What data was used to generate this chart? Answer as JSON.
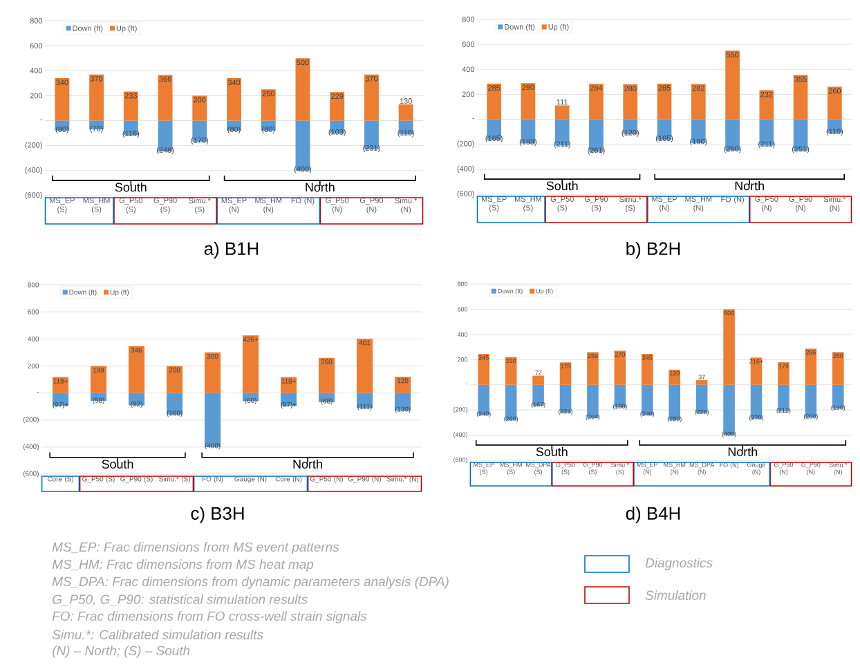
{
  "chart_data": [
    {
      "type": "bar",
      "title": "a) B1H",
      "categories": [
        "MS_EP (S)",
        "MS_HM (S)",
        "G_P50 (S)",
        "G_P90 (S)",
        "Simu.* (S)",
        "MS_EP (N)",
        "MS_HM (N)",
        "FO (N)",
        "G_P50 (N)",
        "G_P90 (N)",
        "Simu.* (N)"
      ],
      "series": [
        {
          "name": "Down (ft)",
          "color": "#5b9bd5",
          "values": [
            -80,
            -70,
            -116,
            -248,
            -170,
            -80,
            -80,
            -400,
            -103,
            -231,
            -110
          ],
          "value_labels": [
            "(80)",
            "(70)",
            "(116)",
            "(248)",
            "(170)",
            "(80)",
            "(80)",
            "(400)",
            "(103)",
            "(231)",
            "(110)"
          ]
        },
        {
          "name": "Up (ft)",
          "color": "#ed7d31",
          "values": [
            340,
            370,
            233,
            366,
            200,
            340,
            250,
            500,
            229,
            370,
            130
          ],
          "value_labels": [
            "340",
            "370",
            "233",
            "366",
            "200",
            "340",
            "250",
            "500",
            "229",
            "370",
            "130"
          ]
        }
      ],
      "ylim": [
        -600,
        800
      ],
      "yticks": [
        {
          "value": -600,
          "label": "(600)"
        },
        {
          "value": -400,
          "label": "(400)"
        },
        {
          "value": -200,
          "label": "(200)"
        },
        {
          "value": 0,
          "label": "-"
        },
        200,
        400,
        600,
        800
      ],
      "grid": "y",
      "legend": "top left",
      "stacked": true,
      "annotations": [
        "South",
        "North"
      ]
    },
    {
      "type": "bar",
      "title": "b) B2H",
      "categories": [
        "MS_EP (S)",
        "MS_HM (S)",
        "G_P50 (S)",
        "G_P90 (S)",
        "Simu.* (S)",
        "MS_EP (N)",
        "MS_HM (N)",
        "FO (N)",
        "G_P50 (N)",
        "G_P90 (N)",
        "Simu.* (N)"
      ],
      "series": [
        {
          "name": "Down (ft)",
          "color": "#5b9bd5",
          "values": [
            -165,
            -193,
            -211,
            -261,
            -120,
            -165,
            -190,
            -250,
            -211,
            -251,
            -110
          ],
          "value_labels": [
            "(165)",
            "(193)",
            "(211)",
            "(261)",
            "(120)",
            "(165)",
            "(190)",
            "(250)",
            "(211)",
            "(251)",
            "(110)"
          ]
        },
        {
          "name": "Up (ft)",
          "color": "#ed7d31",
          "values": [
            285,
            290,
            111,
            284,
            280,
            285,
            282,
            550,
            232,
            355,
            260
          ],
          "value_labels": [
            "285",
            "290",
            "111",
            "284",
            "280",
            "285",
            "282",
            "550",
            "232",
            "355",
            "260"
          ]
        }
      ],
      "ylim": [
        -600,
        800
      ],
      "yticks": [
        {
          "value": -600,
          "label": "(600)"
        },
        {
          "value": -400,
          "label": "(400)"
        },
        {
          "value": -200,
          "label": "(200)"
        },
        {
          "value": 0,
          "label": "-"
        },
        200,
        400,
        600,
        800
      ],
      "grid": "y",
      "legend": "top left",
      "stacked": true,
      "annotations": [
        "South",
        "North"
      ]
    },
    {
      "type": "bar",
      "title": "c) B3H",
      "categories": [
        "Core (S)",
        "G_P50 (S)",
        "G_P90 (S)",
        "Simu.* (S)",
        "FO (N)",
        "Gauge (N)",
        "Core (N)",
        "G_P50 (N)",
        "G_P90 (N)",
        "Simu.* (N)"
      ],
      "series": [
        {
          "name": "Down (ft)",
          "color": "#5b9bd5",
          "values": [
            -97,
            -58,
            -92,
            -160,
            -400,
            -60,
            -97,
            -68,
            -111,
            -130
          ],
          "value_labels": [
            "(97)+",
            "(58)",
            "(92)",
            "(160)",
            "(400)",
            "(60)",
            "(97)+",
            "(68)",
            "(111)",
            "(130)"
          ]
        },
        {
          "name": "Up (ft)",
          "color": "#ed7d31",
          "values": [
            118,
            199,
            346,
            200,
            300,
            426,
            118,
            260,
            401,
            120
          ],
          "value_labels": [
            "118+",
            "199",
            "346",
            "200",
            "300",
            "426+",
            "118+",
            "260",
            "401",
            "120"
          ]
        }
      ],
      "ylim": [
        -600,
        800
      ],
      "yticks": [
        {
          "value": -600,
          "label": "(600)"
        },
        {
          "value": -400,
          "label": "(400)"
        },
        {
          "value": -200,
          "label": "(200)"
        },
        {
          "value": 0,
          "label": "-"
        },
        200,
        400,
        600,
        800
      ],
      "grid": "y",
      "legend": "top left",
      "stacked": true,
      "annotations": [
        "South",
        "North"
      ]
    },
    {
      "type": "bar",
      "title": "d) B4H",
      "categories": [
        "MS_EP (S)",
        "MS_HM (S)",
        "MS_DPA (S)",
        "G_P50 (S)",
        "G_P90 (S)",
        "Simu.* (S)",
        "MS_EP (N)",
        "MS_HM (N)",
        "MS_DPA (N)",
        "FO (N)",
        "Gauge (N)",
        "G_P50 (N)",
        "G_P90 (N)",
        "Simu.* (N)"
      ],
      "series": [
        {
          "name": "Down (ft)",
          "color": "#5b9bd5",
          "values": [
            -240,
            -280,
            -167,
            -221,
            -264,
            -180,
            -240,
            -280,
            -225,
            -400,
            -270,
            -212,
            -260,
            -190
          ],
          "value_labels": [
            "(240)",
            "(280)",
            "(167)",
            "(221)",
            "(264)",
            "(180)",
            "(240)",
            "(280)",
            "(225)",
            "(400)",
            "(270)",
            "(212)",
            "(260)",
            "(190)"
          ]
        },
        {
          "name": "Up (ft)",
          "color": "#ed7d31",
          "values": [
            245,
            220,
            72,
            178,
            259,
            270,
            245,
            120,
            37,
            600,
            216,
            179,
            286,
            260
          ],
          "value_labels": [
            "245",
            "220",
            "72",
            "178",
            "259",
            "270",
            "245",
            "120",
            "37",
            "600",
            "216+",
            "179",
            "286",
            "260"
          ]
        }
      ],
      "ylim": [
        -600,
        800
      ],
      "yticks": [
        {
          "value": -600,
          "label": "(600)"
        },
        {
          "value": -400,
          "label": "(400)"
        },
        {
          "value": -200,
          "label": "(200)"
        },
        {
          "value": 0,
          "label": "-"
        },
        200,
        400,
        600,
        800
      ],
      "grid": "y",
      "legend": "top left",
      "stacked": true,
      "annotations": [
        "South",
        "North"
      ]
    },
    {
      "type": "other",
      "categories": [
        "Diagnostics",
        "Simulation"
      ],
      "colors": [
        "#0070c0",
        "#c00000"
      ],
      "annotations": [
        "MS_EP: Frac dimensions from MS event patterns",
        "MS_HM: Frac dimensions from MS heat map",
        "MS_DPA: Frac dimensions from dynamic parameters analysis (DPA)",
        "G_P50, G_P90: statistical simulation results",
        "FO: Frac dimensions from FO cross-well strain signals",
        "Simu.*: Calibrated simulation results",
        "(N) – North; (S) – South"
      ]
    }
  ]
}
